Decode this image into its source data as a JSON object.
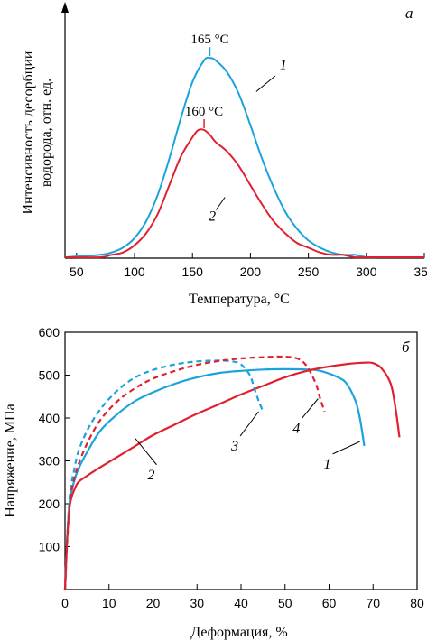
{
  "colors": {
    "blue": "#1aa3dc",
    "red": "#e0202f",
    "axis": "#000000"
  },
  "chart_data": [
    {
      "type": "line",
      "panel_label": "а",
      "xlabel": "Температура, °С",
      "ylabel_line1": "Интенсивность десорбции",
      "ylabel_line2": "водорода, отн. ед.",
      "xticks": [
        "50",
        "100",
        "150",
        "200",
        "250",
        "300",
        "350"
      ],
      "xlim": [
        40,
        350
      ],
      "ylim": [
        0,
        1
      ],
      "series": [
        {
          "name": "1",
          "color": "blue",
          "x": [
            70,
            80,
            90,
            100,
            110,
            120,
            130,
            140,
            150,
            160,
            165,
            170,
            180,
            190,
            200,
            210,
            220,
            230,
            240,
            250,
            260,
            270,
            280,
            290,
            300,
            310,
            320
          ],
          "y": [
            0.01,
            0.02,
            0.04,
            0.08,
            0.15,
            0.26,
            0.41,
            0.58,
            0.73,
            0.82,
            0.83,
            0.82,
            0.77,
            0.68,
            0.55,
            0.41,
            0.29,
            0.19,
            0.12,
            0.07,
            0.04,
            0.02,
            0.01,
            0.01,
            0.0,
            0.0,
            0.0
          ]
        },
        {
          "name": "2",
          "color": "red",
          "x": [
            70,
            80,
            90,
            100,
            110,
            120,
            130,
            140,
            150,
            155,
            160,
            165,
            170,
            180,
            190,
            200,
            210,
            220,
            230,
            240,
            250,
            260,
            270,
            280,
            290,
            300,
            310
          ],
          "y": [
            0.0,
            0.01,
            0.02,
            0.05,
            0.1,
            0.18,
            0.3,
            0.42,
            0.5,
            0.53,
            0.53,
            0.51,
            0.48,
            0.44,
            0.38,
            0.3,
            0.22,
            0.15,
            0.1,
            0.06,
            0.04,
            0.02,
            0.01,
            0.01,
            0.0,
            0.0,
            0.0
          ]
        }
      ],
      "annotations": [
        {
          "text": "165 °С",
          "x": 165,
          "y": 0.83,
          "color": "blue"
        },
        {
          "text": "160 °С",
          "x": 160,
          "y": 0.53,
          "color": "red"
        }
      ],
      "series_labels": [
        {
          "text": "1",
          "x": 205,
          "y": 0.69
        },
        {
          "text": "2",
          "x": 178,
          "y": 0.25
        }
      ]
    },
    {
      "type": "line",
      "panel_label": "б",
      "xlabel": "Деформация, %",
      "ylabel": "Напряжение, МПа",
      "xticks": [
        "0",
        "10",
        "20",
        "30",
        "40",
        "50",
        "60",
        "70",
        "80"
      ],
      "yticks": [
        "0",
        "100",
        "200",
        "300",
        "400",
        "500",
        "600"
      ],
      "xlim": [
        0,
        80
      ],
      "ylim": [
        0,
        600
      ],
      "series": [
        {
          "name": "1",
          "color": "blue",
          "dashed": false,
          "x": [
            0,
            0.5,
            1,
            1.5,
            2,
            3,
            5,
            8,
            12,
            16,
            20,
            25,
            30,
            35,
            40,
            45,
            50,
            55,
            58,
            62,
            64,
            66,
            67,
            68
          ],
          "y": [
            0,
            120,
            200,
            230,
            250,
            280,
            320,
            370,
            410,
            440,
            460,
            480,
            495,
            505,
            510,
            513,
            514,
            513,
            510,
            495,
            480,
            440,
            400,
            335
          ]
        },
        {
          "name": "2",
          "color": "red",
          "dashed": false,
          "x": [
            0,
            0.5,
            1,
            1.5,
            2,
            3,
            5,
            8,
            12,
            16,
            20,
            25,
            30,
            35,
            40,
            45,
            50,
            55,
            60,
            65,
            68,
            70,
            72,
            74,
            75,
            76
          ],
          "y": [
            0,
            120,
            190,
            215,
            230,
            250,
            265,
            285,
            310,
            335,
            360,
            385,
            410,
            432,
            455,
            475,
            495,
            510,
            520,
            527,
            529,
            528,
            515,
            480,
            430,
            355
          ]
        },
        {
          "name": "3",
          "color": "blue",
          "dashed": true,
          "x": [
            0,
            0.5,
            1,
            1.5,
            2,
            3,
            5,
            8,
            12,
            16,
            20,
            25,
            30,
            35,
            38,
            40,
            42,
            43,
            44,
            45
          ],
          "y": [
            0,
            120,
            210,
            250,
            275,
            320,
            370,
            420,
            465,
            495,
            512,
            525,
            532,
            534,
            532,
            525,
            500,
            470,
            440,
            415
          ]
        },
        {
          "name": "4",
          "color": "red",
          "dashed": true,
          "x": [
            0,
            0.5,
            1,
            1.5,
            2,
            3,
            5,
            8,
            12,
            16,
            20,
            25,
            30,
            35,
            40,
            45,
            50,
            53,
            55,
            57,
            58,
            59
          ],
          "y": [
            0,
            110,
            190,
            230,
            255,
            290,
            340,
            395,
            440,
            470,
            492,
            510,
            524,
            533,
            539,
            542,
            543,
            538,
            520,
            480,
            445,
            415
          ]
        }
      ],
      "series_labels": [
        {
          "text": "1",
          "x": 62,
          "y": 300
        },
        {
          "text": "2",
          "x": 19,
          "y": 270
        },
        {
          "text": "3",
          "x": 39,
          "y": 340
        },
        {
          "text": "4",
          "x": 53,
          "y": 380
        }
      ]
    }
  ]
}
